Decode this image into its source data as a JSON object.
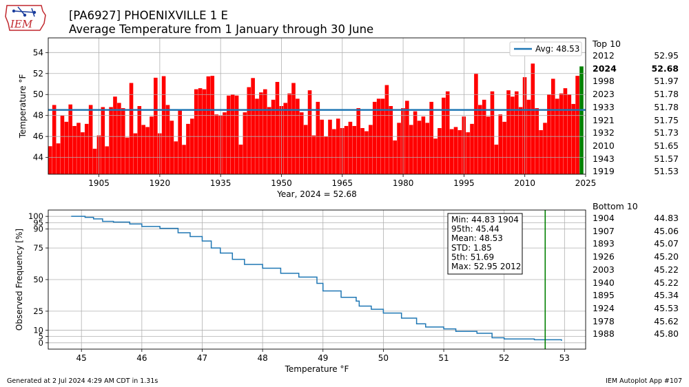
{
  "header": {
    "logo_text": "IEM",
    "title_line1": "[PA6927] PHOENIXVILLE 1 E",
    "title_line2": "Average Temperature from 1 January through 30 June"
  },
  "colors": {
    "bar": "#ff0000",
    "highlight_bar": "#008000",
    "avg_line": "#1f77b4",
    "cdf_line": "#1f77b4",
    "marker_line": "#008000"
  },
  "top10": {
    "heading": "Top 10",
    "rows": [
      {
        "year": "2012",
        "value": "52.95"
      },
      {
        "year": "2024",
        "value": "52.68",
        "highlight": true
      },
      {
        "year": "1998",
        "value": "51.97"
      },
      {
        "year": "2023",
        "value": "51.78"
      },
      {
        "year": "1933",
        "value": "51.78"
      },
      {
        "year": "1921",
        "value": "51.75"
      },
      {
        "year": "1932",
        "value": "51.73"
      },
      {
        "year": "2010",
        "value": "51.65"
      },
      {
        "year": "1943",
        "value": "51.57"
      },
      {
        "year": "1919",
        "value": "51.53"
      }
    ]
  },
  "bottom10": {
    "heading": "Bottom 10",
    "rows": [
      {
        "year": "1904",
        "value": "44.83"
      },
      {
        "year": "1907",
        "value": "45.06"
      },
      {
        "year": "1893",
        "value": "45.07"
      },
      {
        "year": "1926",
        "value": "45.20"
      },
      {
        "year": "2003",
        "value": "45.22"
      },
      {
        "year": "1940",
        "value": "45.22"
      },
      {
        "year": "1895",
        "value": "45.34"
      },
      {
        "year": "1924",
        "value": "45.53"
      },
      {
        "year": "1978",
        "value": "45.62"
      },
      {
        "year": "1988",
        "value": "45.80"
      }
    ]
  },
  "footer": {
    "left": "Generated at 2 Jul 2024 4:29 AM CDT in 1.31s",
    "right": "IEM Autoplot App #107"
  },
  "chart_data": [
    {
      "type": "bar",
      "xlabel": "Year, 2024 = 52.68",
      "ylabel": "Temperature °F",
      "xlim": [
        1892.5,
        2025
      ],
      "ylim": [
        42.4,
        55.4
      ],
      "xticks": [
        1905,
        1920,
        1935,
        1950,
        1965,
        1980,
        1995,
        2010,
        2025
      ],
      "yticks": [
        44,
        46,
        48,
        50,
        52,
        54
      ],
      "grid": true,
      "base": 42.4,
      "average": 48.53,
      "legend": {
        "label": "Avg: 48.53",
        "position": "top-right"
      },
      "highlight_year": 2024,
      "x_start": 1893,
      "values": [
        45.07,
        49.0,
        45.34,
        48.0,
        47.4,
        49.05,
        47.0,
        47.3,
        46.4,
        47.2,
        49.0,
        44.83,
        46.1,
        48.8,
        45.06,
        48.8,
        49.8,
        49.2,
        48.7,
        45.9,
        51.1,
        46.3,
        48.9,
        47.1,
        46.9,
        47.9,
        51.6,
        46.3,
        51.75,
        49.0,
        47.5,
        45.53,
        48.5,
        45.2,
        47.2,
        47.7,
        50.5,
        50.6,
        50.5,
        51.73,
        51.78,
        48.1,
        48.0,
        48.3,
        49.9,
        50.0,
        49.9,
        45.22,
        48.3,
        50.7,
        51.57,
        49.6,
        50.2,
        50.5,
        48.8,
        49.5,
        51.2,
        48.9,
        49.2,
        50.1,
        51.1,
        49.6,
        48.3,
        47.1,
        50.4,
        46.1,
        49.3,
        47.6,
        46.0,
        47.6,
        46.7,
        47.7,
        46.8,
        47.0,
        47.4,
        47.0,
        48.7,
        46.8,
        46.5,
        47.1,
        49.3,
        49.6,
        49.6,
        50.9,
        48.9,
        45.62,
        47.3,
        48.7,
        49.4,
        47.1,
        48.4,
        47.5,
        47.9,
        47.3,
        49.3,
        45.8,
        46.8,
        49.7,
        50.3,
        46.7,
        46.9,
        46.6,
        47.9,
        46.4,
        47.2,
        51.97,
        49.0,
        49.5,
        47.9,
        50.3,
        45.22,
        48.1,
        47.4,
        50.4,
        49.8,
        50.3,
        48.8,
        51.65,
        49.5,
        52.95,
        48.7,
        46.6,
        47.3,
        50.0,
        51.5,
        49.6,
        50.1,
        50.6,
        50.0,
        49.1,
        51.78,
        52.68
      ]
    },
    {
      "type": "line",
      "xlabel": "Temperature °F",
      "ylabel": "Observed Frequency [%]",
      "xlim": [
        44.45,
        53.35
      ],
      "ylim": [
        -5,
        105
      ],
      "xticks": [
        45,
        46,
        47,
        48,
        49,
        50,
        51,
        52,
        53
      ],
      "yticks": [
        0,
        5,
        10,
        25,
        50,
        75,
        90,
        95,
        100
      ],
      "grid": true,
      "marker_x": 52.68,
      "x": [
        44.83,
        45.06,
        45.2,
        45.35,
        45.53,
        45.8,
        46.0,
        46.3,
        46.6,
        46.8,
        47.0,
        47.15,
        47.3,
        47.5,
        47.7,
        48.0,
        48.3,
        48.6,
        48.9,
        49.0,
        49.3,
        49.55,
        49.6,
        49.8,
        50.0,
        50.3,
        50.55,
        50.7,
        51.0,
        51.2,
        51.55,
        51.8,
        52.0,
        52.5,
        52.95
      ],
      "y": [
        100,
        99.2,
        98.0,
        96.0,
        95.5,
        94.0,
        92.0,
        90.5,
        87.0,
        84.0,
        80.5,
        75.0,
        71.0,
        66.0,
        62.0,
        59.0,
        55.0,
        52.0,
        47.0,
        41.0,
        36.0,
        33.0,
        29.0,
        26.5,
        23.5,
        19.5,
        15.0,
        12.5,
        11.0,
        9.0,
        7.5,
        4.0,
        3.0,
        2.4,
        1.5
      ],
      "stats": [
        "Min: 44.83 1904",
        "95th: 45.44",
        "Mean: 48.53",
        "STD: 1.85",
        "5th: 51.69",
        "Max: 52.95 2012"
      ]
    }
  ]
}
